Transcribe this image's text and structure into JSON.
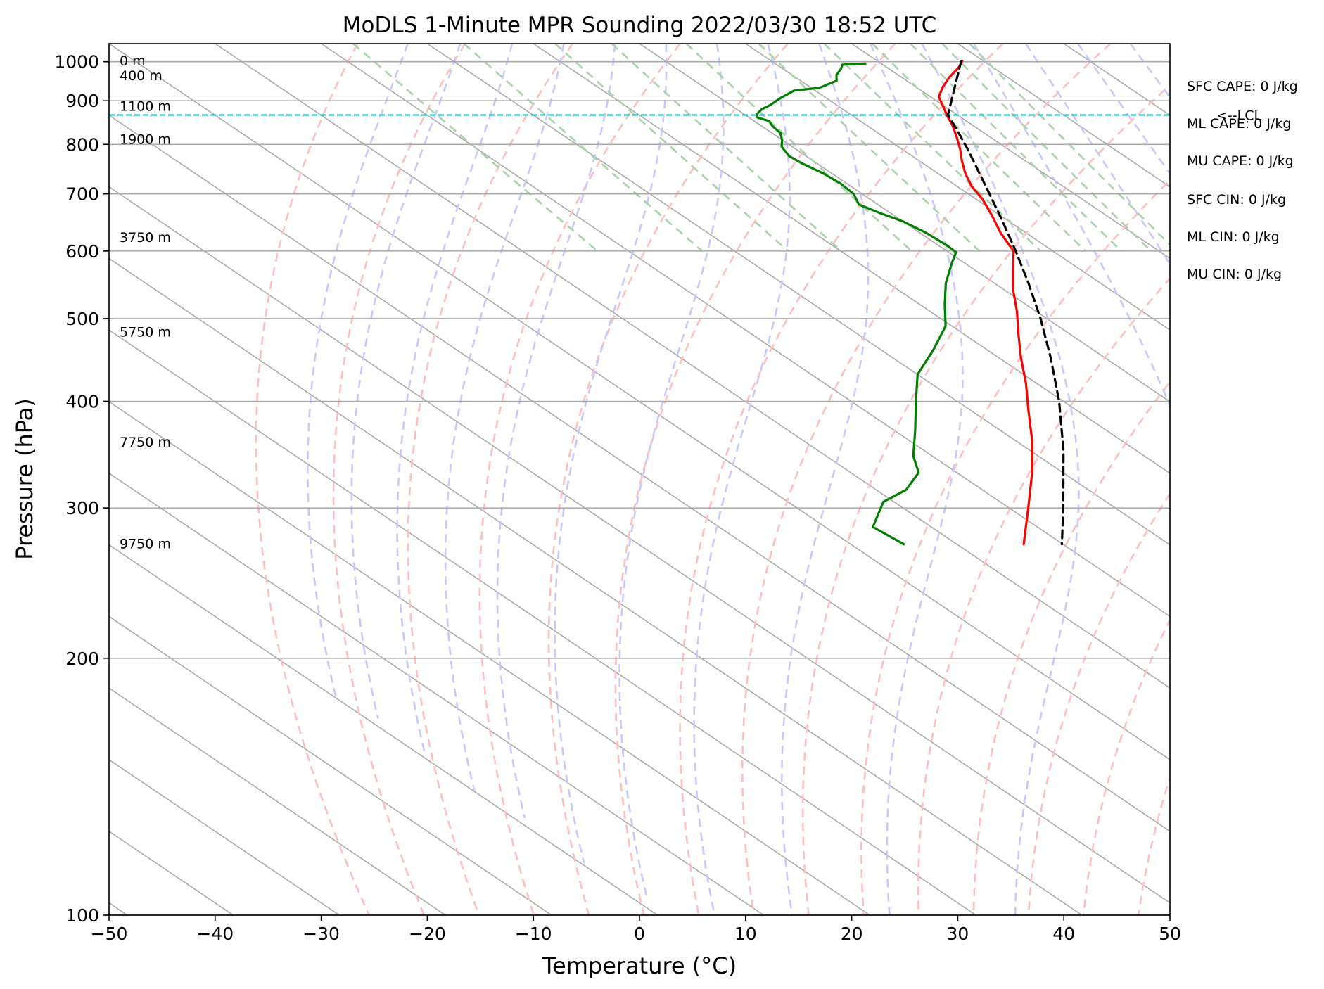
{
  "chart_data": {
    "type": "line",
    "title": "MoDLS 1-Minute MPR Sounding 2022/03/30 18:52 UTC",
    "xlabel": "Temperature (°C)",
    "ylabel": "Pressure (hPa)",
    "xlim": [
      -50,
      50
    ],
    "ylim": [
      1050,
      100
    ],
    "y_scale": "log",
    "skew": "skew-T",
    "grid": true,
    "x_ticks": [
      "−50",
      "−40",
      "−30",
      "−20",
      "−10",
      "0",
      "10",
      "20",
      "30",
      "40",
      "50"
    ],
    "y_ticks": [
      {
        "p": 100,
        "label": "100"
      },
      {
        "p": 200,
        "label": "200"
      },
      {
        "p": 300,
        "label": "300"
      },
      {
        "p": 400,
        "label": "400"
      },
      {
        "p": 500,
        "label": "500"
      },
      {
        "p": 600,
        "label": "600"
      },
      {
        "p": 700,
        "label": "700"
      },
      {
        "p": 800,
        "label": "800"
      },
      {
        "p": 900,
        "label": "900"
      },
      {
        "p": 1000,
        "label": "1000"
      }
    ],
    "height_labels": [
      {
        "text": "9750 m",
        "p": 272
      },
      {
        "text": "7750 m",
        "p": 358
      },
      {
        "text": "5750 m",
        "p": 482
      },
      {
        "text": "3750 m",
        "p": 622
      },
      {
        "text": "1900 m",
        "p": 810
      },
      {
        "text": "1100 m",
        "p": 886
      },
      {
        "text": "400 m",
        "p": 962
      },
      {
        "text": "0 m",
        "p": 1001
      }
    ],
    "lcl": {
      "label": "<--LCL",
      "p": 866
    },
    "stats": [
      "SFC CAPE: 0 J/kg",
      "ML CAPE: 0 J/kg",
      "MU CAPE: 0 J/kg",
      "SFC CIN: 0 J/kg",
      "ML CIN: 0 J/kg",
      "MU CIN: 0 J/kg"
    ],
    "series": [
      {
        "key": "temperature",
        "color": "#ff0000",
        "style": "solid",
        "points": [
          {
            "p": 1002,
            "t": 28.0
          },
          {
            "p": 985,
            "t": 26.8
          },
          {
            "p": 960,
            "t": 24.6
          },
          {
            "p": 935,
            "t": 22.6
          },
          {
            "p": 910,
            "t": 20.8
          },
          {
            "p": 885,
            "t": 19.8
          },
          {
            "p": 866,
            "t": 19.0
          },
          {
            "p": 840,
            "t": 18.0
          },
          {
            "p": 815,
            "t": 16.8
          },
          {
            "p": 790,
            "t": 15.5
          },
          {
            "p": 765,
            "t": 14.0
          },
          {
            "p": 740,
            "t": 12.6
          },
          {
            "p": 715,
            "t": 11.4
          },
          {
            "p": 690,
            "t": 10.6
          },
          {
            "p": 660,
            "t": 9.2
          },
          {
            "p": 630,
            "t": 7.6
          },
          {
            "p": 600,
            "t": 6.3
          },
          {
            "p": 570,
            "t": 3.6
          },
          {
            "p": 540,
            "t": 0.8
          },
          {
            "p": 510,
            "t": -1.8
          },
          {
            "p": 480,
            "t": -4.8
          },
          {
            "p": 450,
            "t": -7.9
          },
          {
            "p": 420,
            "t": -11.0
          },
          {
            "p": 390,
            "t": -14.6
          },
          {
            "p": 360,
            "t": -18.4
          },
          {
            "p": 330,
            "t": -22.9
          },
          {
            "p": 300,
            "t": -28.2
          },
          {
            "p": 272,
            "t": -33.7
          }
        ]
      },
      {
        "key": "dewpoint",
        "color": "#008000",
        "style": "solid",
        "points": [
          {
            "p": 995,
            "t": 18.5
          },
          {
            "p": 992,
            "t": 16.2
          },
          {
            "p": 980,
            "t": 15.4
          },
          {
            "p": 965,
            "t": 14.2
          },
          {
            "p": 950,
            "t": 13.4
          },
          {
            "p": 932,
            "t": 10.8
          },
          {
            "p": 925,
            "t": 8.0
          },
          {
            "p": 905,
            "t": 5.5
          },
          {
            "p": 890,
            "t": 3.8
          },
          {
            "p": 880,
            "t": 2.4
          },
          {
            "p": 868,
            "t": 1.2
          },
          {
            "p": 860,
            "t": 0.8
          },
          {
            "p": 852,
            "t": 1.4
          },
          {
            "p": 840,
            "t": 1.0
          },
          {
            "p": 825,
            "t": 0.8
          },
          {
            "p": 810,
            "t": 0.0
          },
          {
            "p": 795,
            "t": -1.0
          },
          {
            "p": 775,
            "t": -1.6
          },
          {
            "p": 760,
            "t": -1.4
          },
          {
            "p": 740,
            "t": -0.8
          },
          {
            "p": 720,
            "t": -0.6
          },
          {
            "p": 700,
            "t": -0.8
          },
          {
            "p": 680,
            "t": -1.8
          },
          {
            "p": 665,
            "t": -1.0
          },
          {
            "p": 650,
            "t": 0.0
          },
          {
            "p": 630,
            "t": 0.6
          },
          {
            "p": 610,
            "t": 0.8
          },
          {
            "p": 598,
            "t": 0.7
          },
          {
            "p": 580,
            "t": -1.3
          },
          {
            "p": 550,
            "t": -4.6
          },
          {
            "p": 520,
            "t": -7.6
          },
          {
            "p": 490,
            "t": -10.6
          },
          {
            "p": 460,
            "t": -15.0
          },
          {
            "p": 430,
            "t": -20.0
          },
          {
            "p": 400,
            "t": -23.9
          },
          {
            "p": 370,
            "t": -28.0
          },
          {
            "p": 345,
            "t": -31.8
          },
          {
            "p": 330,
            "t": -33.6
          },
          {
            "p": 315,
            "t": -37.2
          },
          {
            "p": 305,
            "t": -41.0
          },
          {
            "p": 285,
            "t": -45.5
          },
          {
            "p": 272,
            "t": -45.0
          }
        ]
      },
      {
        "key": "parcel",
        "color": "#000000",
        "style": "dashed",
        "points": [
          {
            "p": 1002,
            "t": 27.9
          },
          {
            "p": 866,
            "t": 19.1
          },
          {
            "p": 830,
            "t": 17.8
          },
          {
            "p": 790,
            "t": 16.2
          },
          {
            "p": 750,
            "t": 14.4
          },
          {
            "p": 700,
            "t": 12.0
          },
          {
            "p": 650,
            "t": 9.4
          },
          {
            "p": 600,
            "t": 6.5
          },
          {
            "p": 550,
            "t": 3.2
          },
          {
            "p": 500,
            "t": -0.6
          },
          {
            "p": 450,
            "t": -5.1
          },
          {
            "p": 400,
            "t": -10.4
          },
          {
            "p": 350,
            "t": -16.9
          },
          {
            "p": 300,
            "t": -24.9
          },
          {
            "p": 272,
            "t": -30.1
          }
        ]
      }
    ],
    "background_lines": {
      "isotherm_color": "#aaaaaa",
      "dry_adiabat_color": "#ffbfbf",
      "moist_adiabat_color": "#c8c8ff",
      "mixing_ratio_color": "#a9d3a9",
      "lcl_color": "#20c0c0"
    }
  }
}
